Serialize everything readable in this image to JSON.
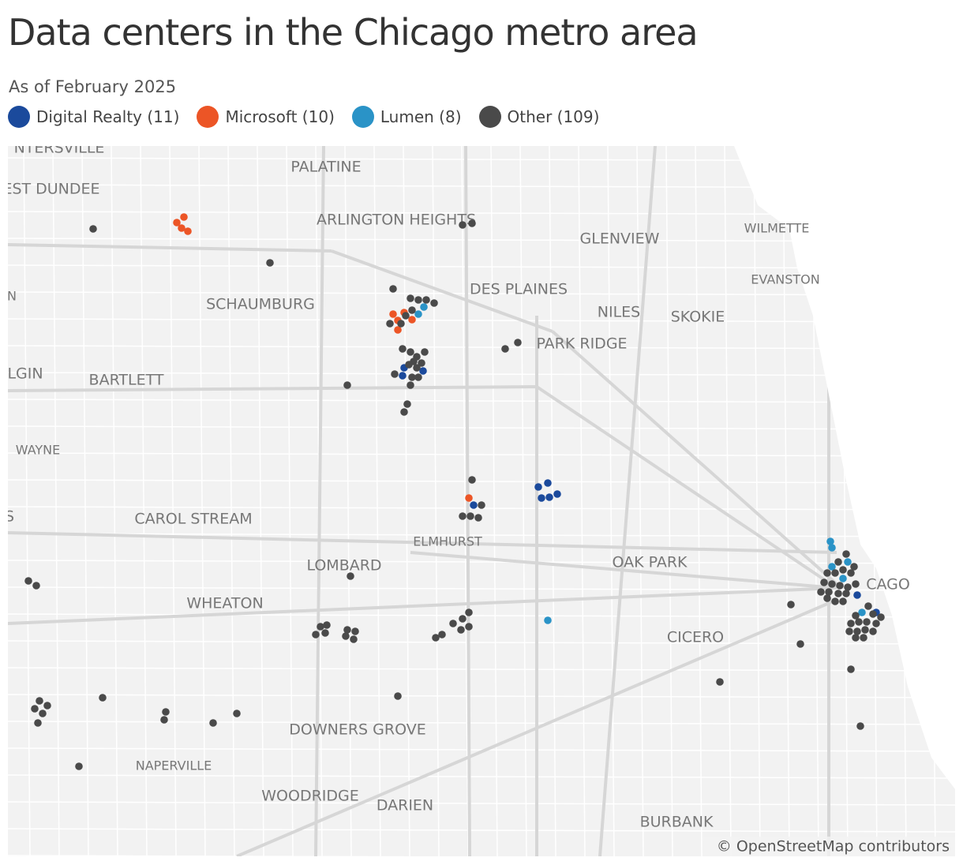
{
  "title": "Data centers in the Chicago metro area",
  "subtitle": "As of February 2025",
  "legend": [
    {
      "label": "Digital Realty (11)",
      "color": "#1b4a9c"
    },
    {
      "label": "Microsoft (10)",
      "color": "#ec5526"
    },
    {
      "label": "Lumen (8)",
      "color": "#2a93c7"
    },
    {
      "label": "Other (109)",
      "color": "#4a4a4a"
    }
  ],
  "places": [
    "NTERSVILLE",
    "EST DUNDEE",
    "PALATINE",
    "ARLINGTON HEIGHTS",
    "GLENVIEW",
    "WILMETTE",
    "EVANSTON",
    "N",
    "SCHAUMBURG",
    "DES PLAINES",
    "NILES",
    "SKOKIE",
    "PARK RIDGE",
    "LGIN",
    "BARTLETT",
    "WAYNE",
    "S",
    "CAROL STREAM",
    "ELMHURST",
    "LOMBARD",
    "OAK PARK",
    "CAGO",
    "WHEATON",
    "CICERO",
    "DOWNERS GROVE",
    "NAPERVILLE",
    "WOODRIDGE",
    "DARIEN",
    "BURBANK"
  ],
  "attribution": "© OpenStreetMap contributors"
}
